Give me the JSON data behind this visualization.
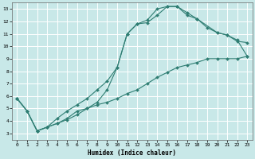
{
  "xlabel": "Humidex (Indice chaleur)",
  "xlim": [
    -0.5,
    23.5
  ],
  "ylim": [
    2.5,
    13.5
  ],
  "xticks": [
    0,
    1,
    2,
    3,
    4,
    5,
    6,
    7,
    8,
    9,
    10,
    11,
    12,
    13,
    14,
    15,
    16,
    17,
    18,
    19,
    20,
    21,
    22,
    23
  ],
  "yticks": [
    3,
    4,
    5,
    6,
    7,
    8,
    9,
    10,
    11,
    12,
    13
  ],
  "bg_color": "#c8e8e8",
  "grid_color": "#ffffff",
  "line_color": "#2e7d72",
  "line1_x": [
    0,
    1,
    2,
    3,
    4,
    5,
    6,
    7,
    8,
    9,
    10,
    11,
    12,
    13,
    14,
    15,
    16,
    17,
    18,
    19,
    20,
    21,
    22,
    23
  ],
  "line1_y": [
    5.8,
    4.8,
    3.2,
    3.5,
    3.8,
    4.1,
    4.5,
    5.0,
    5.3,
    5.5,
    5.8,
    6.2,
    6.5,
    7.0,
    7.5,
    7.9,
    8.3,
    8.5,
    8.7,
    9.0,
    9.0,
    9.0,
    9.0,
    9.2
  ],
  "line2_x": [
    0,
    1,
    2,
    3,
    4,
    5,
    6,
    7,
    8,
    9,
    10,
    11,
    12,
    13,
    14,
    15,
    16,
    17,
    18,
    20,
    21,
    22,
    23
  ],
  "line2_y": [
    5.8,
    4.8,
    3.2,
    3.5,
    3.8,
    4.2,
    4.8,
    5.0,
    5.5,
    6.5,
    8.3,
    11.0,
    11.8,
    11.9,
    12.5,
    13.2,
    13.2,
    12.7,
    12.2,
    11.1,
    10.9,
    10.4,
    10.3
  ],
  "line3_x": [
    0,
    1,
    2,
    3,
    4,
    5,
    6,
    7,
    8,
    9,
    10,
    11,
    12,
    13,
    14,
    15,
    16,
    17,
    18,
    19,
    20,
    21,
    22,
    23
  ],
  "line3_y": [
    5.8,
    4.8,
    3.2,
    3.5,
    4.2,
    4.8,
    5.3,
    5.8,
    6.5,
    7.2,
    8.3,
    11.0,
    11.8,
    12.1,
    13.0,
    13.2,
    13.2,
    12.5,
    12.2,
    11.5,
    11.1,
    10.9,
    10.5,
    9.2
  ],
  "figsize": [
    3.2,
    2.0
  ],
  "dpi": 100
}
